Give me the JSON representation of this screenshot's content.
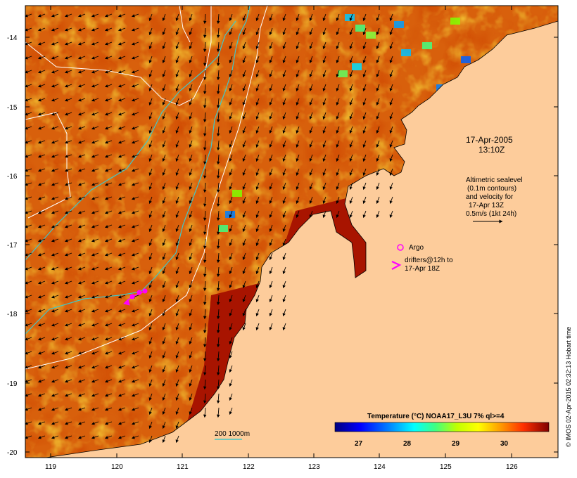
{
  "map": {
    "y_ticks": [
      "-14",
      "-15",
      "-16",
      "-17",
      "-18",
      "-19",
      "-20"
    ],
    "x_ticks": [
      "119",
      "120",
      "121",
      "122",
      "123",
      "124",
      "125",
      "126"
    ],
    "date_label": "17-Apr-2005",
    "time_label": "13:10Z",
    "annotation_lines": [
      "Altimetric sealevel",
      "(0.1m contours)",
      "and velocity for",
      "17-Apr 13Z",
      "0.5m/s (1kt 24h)"
    ],
    "argo_label": "Argo",
    "drifters_line1": "drifters@12h to",
    "drifters_line2": "17-Apr 18Z",
    "isobath_label": "200  1000m",
    "colorbar_title": "Temperature (°C) NOAA17_L3U 7% ql>=4",
    "colorbar_ticks": [
      "27",
      "28",
      "29",
      "30"
    ],
    "credit": "© IMOS 02-Apr-2015 02:32:13 Hobart time"
  },
  "colors": {
    "land": "#fdcc9b",
    "sea_hot": "#a81400",
    "sea_warm": "#d8600c",
    "sea_mid": "#f0a020",
    "sea_cool": "#f5d200",
    "isobath": "#40c8c8",
    "contour": "#ffffff",
    "argo_drifter": "#ff00ff"
  }
}
